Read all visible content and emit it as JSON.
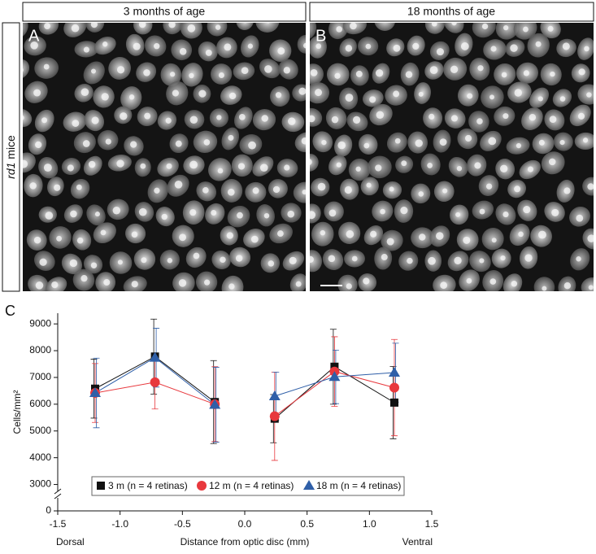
{
  "header": {
    "left": "3 months of age",
    "right": "18 months of age"
  },
  "row_label": {
    "italic": "rd1",
    "text": "mice"
  },
  "panels": {
    "a": "A",
    "b": "B",
    "c": "C"
  },
  "chart_data": {
    "type": "line",
    "ylabel": "Cells/mm²",
    "xlabel": "Distance from optic disc (mm)",
    "x_end_labels": {
      "left": "Dorsal",
      "right": "Ventral"
    },
    "x": [
      -1.2,
      -0.72,
      -0.24,
      0,
      0.24,
      0.72,
      1.2
    ],
    "series": [
      {
        "name": "3 m (n = 4 retinas)",
        "color": "#111111",
        "marker": "square",
        "values": [
          6580,
          7780,
          6080,
          null,
          5460,
          7400,
          6060
        ],
        "errors": [
          1100,
          1400,
          1550,
          null,
          900,
          1400,
          1350
        ]
      },
      {
        "name": "12 m (n = 4 retinas)",
        "color": "#e8383d",
        "marker": "circle",
        "values": [
          6420,
          6820,
          6000,
          null,
          5550,
          7220,
          6620
        ],
        "errors": [
          1100,
          1000,
          1400,
          null,
          1650,
          1300,
          1800
        ]
      },
      {
        "name": "18 m (n = 4 retinas)",
        "color": "#2f5fa8",
        "marker": "triangle",
        "values": [
          6420,
          7740,
          5980,
          null,
          6300,
          7020,
          7180
        ],
        "errors": [
          1300,
          1100,
          1400,
          null,
          900,
          1000,
          1100
        ]
      }
    ],
    "xlim": [
      -1.5,
      1.5
    ],
    "xticks": [
      -1.5,
      {
        "value": -1,
        "label": "-1.0"
      },
      -0.5,
      {
        "value": 0,
        "label": "0.0"
      },
      0.5,
      {
        "value": 1,
        "label": "1.0"
      },
      1.5
    ],
    "ylim": [
      2500,
      9400
    ],
    "yticks": [
      0,
      3000,
      4000,
      5000,
      6000,
      7000,
      8000,
      9000
    ],
    "axis_break": true,
    "grid": false
  }
}
